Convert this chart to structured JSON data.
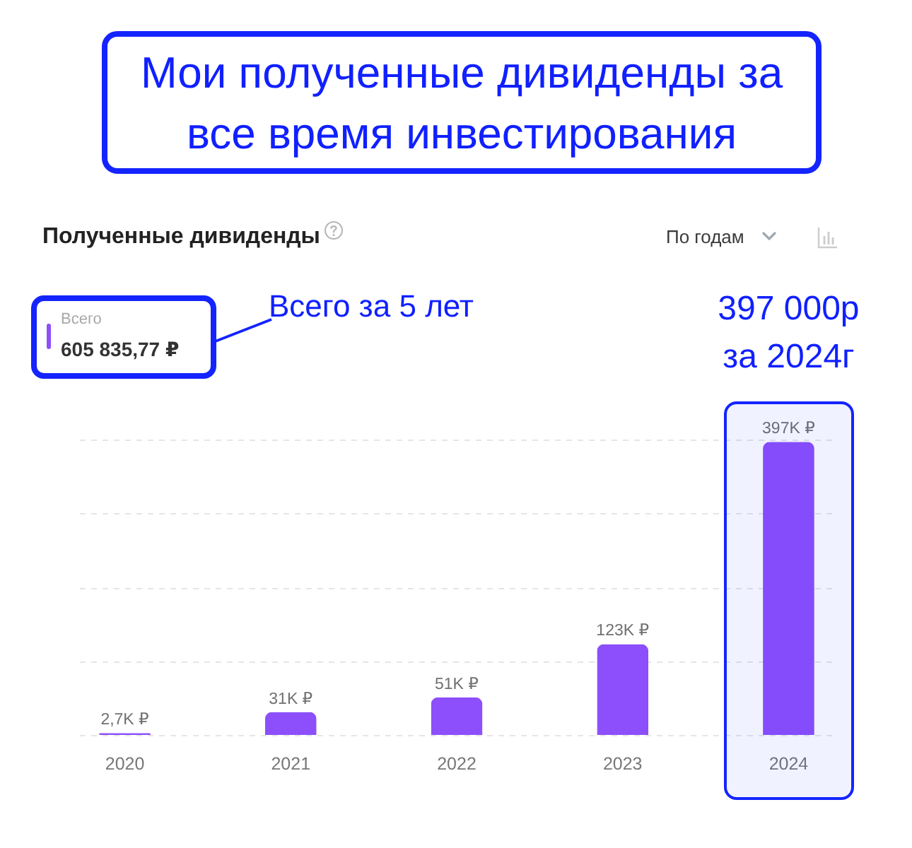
{
  "chart_data": {
    "type": "bar",
    "title": "Мои полученные дивиденды за все время инвестирования",
    "subtitle": "Полученные дивиденды",
    "categories": [
      "2020",
      "2021",
      "2022",
      "2023",
      "2024"
    ],
    "values": [
      2700,
      31000,
      51000,
      123000,
      397000
    ],
    "value_labels": [
      "2,7K ₽",
      "31K ₽",
      "51K ₽",
      "123K ₽",
      "397K ₽"
    ],
    "color": "#8c4ffb",
    "ylim": [
      0,
      400000
    ],
    "yticks": [
      {
        "value": 0,
        "label": null
      },
      {
        "value": 100000,
        "label": null
      },
      {
        "value": 200000,
        "label": null
      },
      {
        "value": 300000,
        "label": null
      },
      {
        "value": 400000,
        "label": null
      }
    ],
    "grid": "y",
    "tick_labels": "x",
    "bands": [
      {
        "axis": "x",
        "from": "2024",
        "to": "2024",
        "color": "#1424ff"
      }
    ],
    "annotations": [
      "Всего",
      "605 835,77 ₽",
      "Всего за 5 лет",
      {
        "text": "397 000р за 2024г",
        "x": "2024",
        "y": 397000
      },
      "По годам"
    ]
  }
}
